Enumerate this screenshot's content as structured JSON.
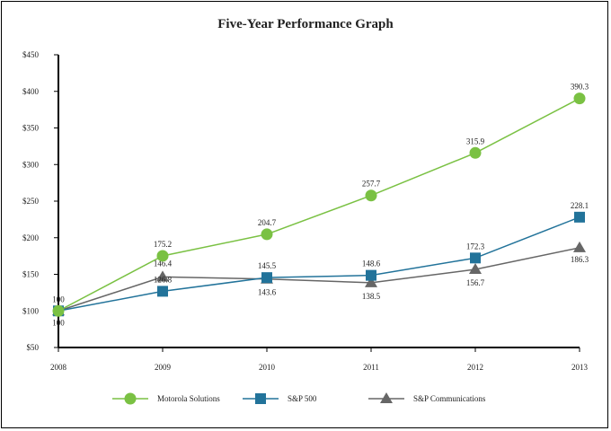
{
  "chart_data": {
    "type": "line",
    "title": "Five-Year Performance Graph",
    "xlabel": "",
    "ylabel": "",
    "categories": [
      "2008",
      "2009",
      "2010",
      "2011",
      "2012",
      "2013"
    ],
    "ylim": [
      50,
      450
    ],
    "yticks": [
      50,
      100,
      150,
      200,
      250,
      300,
      350,
      400,
      450
    ],
    "ytick_labels": [
      "$50",
      "$100",
      "$150",
      "$200",
      "$250",
      "$300",
      "$350",
      "$400",
      "$450"
    ],
    "grid": false,
    "legend_position": "bottom",
    "series": [
      {
        "name": "Motorola Solutions",
        "marker": "circle",
        "color": "#7ac143",
        "values": [
          100,
          175.2,
          204.7,
          257.7,
          315.9,
          390.3
        ],
        "labels": [
          "100",
          "175.2",
          "204.7",
          "257.7",
          "315.9",
          "390.3"
        ]
      },
      {
        "name": "S&P 500",
        "marker": "square",
        "color": "#22739a",
        "values": [
          100,
          126.8,
          145.5,
          148.6,
          172.3,
          228.1
        ],
        "labels": [
          "100",
          "126.8",
          "145.5",
          "148.6",
          "172.3",
          "228.1"
        ]
      },
      {
        "name": "S&P Communications",
        "marker": "triangle",
        "color": "#666666",
        "values": [
          100,
          146.4,
          143.6,
          138.5,
          156.7,
          186.3
        ],
        "labels": [
          "100",
          "146.4",
          "143.6",
          "138.5",
          "156.7",
          "186.3"
        ]
      }
    ]
  }
}
